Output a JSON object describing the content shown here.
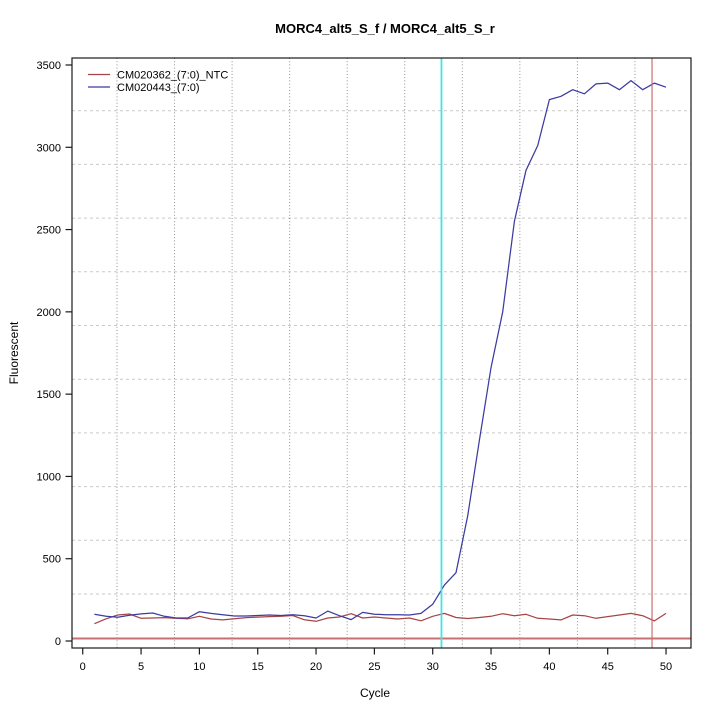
{
  "title": "MORC4_alt5_S_f / MORC4_alt5_S_r",
  "axes": {
    "x_label": "Cycle",
    "y_label": "Fluorescent",
    "x_ticks": [
      0,
      5,
      10,
      15,
      20,
      25,
      30,
      35,
      40,
      45,
      50
    ],
    "y_ticks": [
      0,
      500,
      1000,
      1500,
      2000,
      2500,
      3000,
      3500
    ]
  },
  "legend": {
    "entries": [
      {
        "label": "CM020362_(7:0)_NTC",
        "color": "#a64545"
      },
      {
        "label": "CM020443_(7:0)",
        "color": "#3b3ba2"
      }
    ]
  },
  "colors": {
    "ntc_line": "#a64545",
    "sample_line": "#3b3ba2",
    "threshold_cycle_vline": "#42e4e6",
    "cutoff_vline": "#c97070",
    "threshold_hline": "#c97070",
    "grid_horizontal": "#c9c9c9",
    "grid_vertical": "#8f8f8f",
    "box": "#1a1a1a"
  },
  "chart_data": {
    "type": "line",
    "title": "MORC4_alt5_S_f / MORC4_alt5_S_r",
    "xlabel": "Cycle",
    "ylabel": "Fluorescent",
    "xlim": [
      -0.92,
      52.14
    ],
    "ylim": [
      -42.5,
      3542.5
    ],
    "grid": true,
    "legend_position": "top-left",
    "x": [
      1,
      2,
      3,
      4,
      5,
      6,
      7,
      8,
      9,
      10,
      11,
      12,
      13,
      14,
      15,
      16,
      17,
      18,
      19,
      20,
      21,
      22,
      23,
      24,
      25,
      26,
      27,
      28,
      29,
      30,
      31,
      32,
      33,
      34,
      35,
      36,
      37,
      38,
      39,
      40,
      41,
      42,
      43,
      44,
      45,
      46,
      47,
      48,
      49,
      50
    ],
    "series": [
      {
        "name": "CM020362_(7:0)_NTC",
        "color": "#a64545",
        "values": [
          105,
          135,
          158,
          164,
          138,
          140,
          142,
          138,
          135,
          150,
          134,
          128,
          135,
          142,
          145,
          148,
          150,
          155,
          129,
          120,
          140,
          146,
          166,
          140,
          146,
          140,
          134,
          140,
          123,
          150,
          168,
          143,
          137,
          143,
          150,
          166,
          154,
          162,
          138,
          134,
          128,
          158,
          154,
          138,
          148,
          158,
          168,
          154,
          122,
          168
        ]
      },
      {
        "name": "CM020443_(7:0)",
        "color": "#3b3ba2",
        "values": [
          162,
          150,
          144,
          156,
          165,
          170,
          150,
          140,
          140,
          178,
          168,
          160,
          152,
          152,
          155,
          158,
          155,
          160,
          154,
          140,
          182,
          154,
          130,
          174,
          162,
          160,
          160,
          158,
          168,
          223,
          340,
          415,
          760,
          1220,
          1660,
          2000,
          2550,
          2860,
          3010,
          3290,
          3310,
          3350,
          3325,
          3385,
          3390,
          3350,
          3405,
          3350,
          3390,
          3365
        ]
      }
    ],
    "hlines": [
      {
        "y": 15,
        "color": "#c97070",
        "role": "threshold"
      }
    ],
    "vlines": [
      {
        "x": 30.75,
        "color": "#42e4e6",
        "role": "threshold-cycle"
      },
      {
        "x": 48.8,
        "color": "#c97070",
        "role": "cutoff-cycle"
      }
    ]
  }
}
